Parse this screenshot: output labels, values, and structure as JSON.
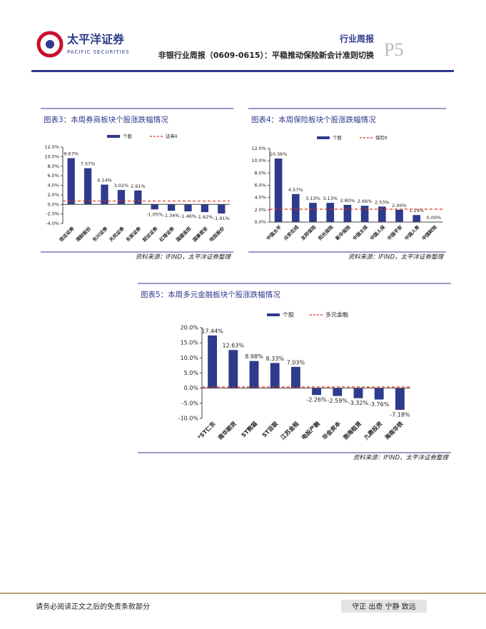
{
  "header": {
    "brand": "太平洋证券",
    "brand_en": "PACIFIC SECURITIES",
    "report_type": "行业周报",
    "title": "非银行业周报（0609-0615）：平稳推动保险新会计准则切换",
    "page": "P5"
  },
  "chart_data": [
    {
      "type": "bar",
      "title": "图表3：本周券商板块个股涨跌幅情况",
      "source": "资料来源：IFIND，太平洋证券整理",
      "categories": [
        "信达证券",
        "湘财股份",
        "东兴证券",
        "天风证券",
        "东吴证券",
        "财达证券",
        "红塔证券",
        "国盛金控",
        "国泰君安",
        "哈投股份"
      ],
      "series": [
        {
          "name": "个股",
          "color": "#2e3a8c",
          "values": [
            9.67,
            7.57,
            4.14,
            3.02,
            2.91,
            -1.05,
            -1.34,
            -1.46,
            -1.62,
            -1.91
          ],
          "value_labels": [
            "9.67%",
            "7.57%",
            "4.14%",
            "3.02%",
            "2.91%",
            "-1.05%",
            "-1.34%",
            "-1.46%",
            "-1.62%",
            "-1.91%"
          ]
        },
        {
          "name": "证券Ⅱ",
          "color": "#e0301e",
          "values": [
            0.7,
            0.7,
            0.7,
            0.7,
            0.7,
            0.7,
            0.7,
            0.7,
            0.7,
            0.7
          ]
        }
      ],
      "ylim": [
        -4,
        12
      ],
      "yticks": [
        {
          "value": -4,
          "label": "-4.0%"
        },
        {
          "value": -2,
          "label": "-2.0%"
        },
        {
          "value": 0,
          "label": "0.0%"
        },
        {
          "value": 2,
          "label": "2.0%"
        },
        {
          "value": 4,
          "label": "4.0%"
        },
        {
          "value": 6,
          "label": "6.0%"
        },
        {
          "value": 8,
          "label": "8.0%"
        },
        {
          "value": 10,
          "label": "10.0%"
        },
        {
          "value": 12,
          "label": "12.0%"
        }
      ]
    },
    {
      "type": "bar",
      "title": "图表4：本周保险板块个股涨跌幅情况",
      "source": "资料来源：IFIND，太平洋证券整理",
      "categories": [
        "中国太平",
        "众安在线",
        "友邦保险",
        "阳光保险",
        "新华保险",
        "中国太保",
        "中国人保",
        "中国平安",
        "中国人寿",
        "中国财险"
      ],
      "series": [
        {
          "name": "个股",
          "color": "#2e3a8c",
          "values": [
            10.36,
            4.57,
            3.13,
            3.13,
            2.8,
            2.66,
            2.53,
            2.0,
            1.14,
            0.0
          ],
          "value_labels": [
            "10.36%",
            "4.57%",
            "3.13%",
            "3.13%",
            "2.80%",
            "2.66%",
            "2.53%",
            "2.00%",
            "1.14%",
            "0.00%"
          ]
        },
        {
          "name": "保险Ⅱ",
          "color": "#e0301e",
          "values": [
            2.1,
            2.1,
            2.1,
            2.1,
            2.1,
            2.1,
            2.1,
            2.1,
            2.1,
            2.1
          ]
        }
      ],
      "ylim": [
        0,
        12
      ],
      "yticks": [
        {
          "value": 0,
          "label": "0.0%"
        },
        {
          "value": 2,
          "label": "2.0%"
        },
        {
          "value": 4,
          "label": "4.0%"
        },
        {
          "value": 6,
          "label": "6.0%"
        },
        {
          "value": 8,
          "label": "8.0%"
        },
        {
          "value": 10,
          "label": "10.0%"
        },
        {
          "value": 12,
          "label": "12.0%"
        }
      ]
    },
    {
      "type": "bar",
      "title": "图表5：本周多元金融板块个股涨跌幅情况",
      "source": "资料来源：IFIND，太平洋证券整理",
      "categories": [
        "*ST仁东",
        "南华期货",
        "ST熊猫",
        "ST亚联",
        "江苏金租",
        "电投产融",
        "华金资本",
        "渤海租赁",
        "九鼎投资",
        "海南华铁"
      ],
      "series": [
        {
          "name": "个股",
          "color": "#2e3a8c",
          "values": [
            17.44,
            12.63,
            8.98,
            8.33,
            7.03,
            -2.26,
            -2.59,
            -3.32,
            -3.76,
            -7.18
          ],
          "value_labels": [
            "17.44%",
            "12.63%",
            "8.98%",
            "8.33%",
            "7.03%",
            "-2.26%",
            "-2.59%",
            "-3.32%",
            "-3.76%",
            "-7.18%"
          ]
        },
        {
          "name": "多元金融",
          "color": "#e0301e",
          "values": [
            0.4,
            0.4,
            0.4,
            0.4,
            0.4,
            0.4,
            0.4,
            0.4,
            0.4,
            0.4
          ]
        }
      ],
      "ylim": [
        -10,
        20
      ],
      "yticks": [
        {
          "value": -10,
          "label": "-10.0%"
        },
        {
          "value": -5,
          "label": "-5.0%"
        },
        {
          "value": 0,
          "label": "0.0%"
        },
        {
          "value": 5,
          "label": "5.0%"
        },
        {
          "value": 10,
          "label": "10.0%"
        },
        {
          "value": 15,
          "label": "15.0%"
        },
        {
          "value": 20,
          "label": "20.0%"
        }
      ]
    }
  ],
  "footer": {
    "disclaimer": "请务必阅读正文之后的免责条款部分",
    "motto": "守正 出奇 宁静 致远"
  }
}
